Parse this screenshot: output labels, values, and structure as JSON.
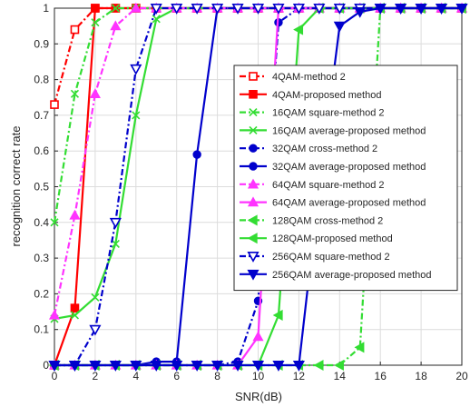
{
  "chart_data": {
    "type": "line",
    "xlabel": "SNR(dB)",
    "ylabel": "recognition correct rate",
    "xlim": [
      0,
      20
    ],
    "ylim": [
      0,
      1
    ],
    "x_ticks": [
      0,
      2,
      4,
      6,
      8,
      10,
      12,
      14,
      16,
      18,
      20
    ],
    "y_ticks": [
      0,
      0.1,
      0.2,
      0.3,
      0.4,
      0.5,
      0.6,
      0.7,
      0.8,
      0.9,
      1
    ],
    "x_tick_labels": [
      "0",
      "2",
      "4",
      "6",
      "8",
      "10",
      "12",
      "14",
      "16",
      "18",
      "20"
    ],
    "y_tick_labels": [
      "0",
      "0.1",
      "0.2",
      "0.3",
      "0.4",
      "0.5",
      "0.6",
      "0.7",
      "0.8",
      "0.9",
      "1"
    ],
    "grid": true,
    "legend_position": "center-right",
    "series": [
      {
        "name": "4QAM-method 2",
        "color": "#ff0000",
        "dash": "dashdot",
        "marker": "square-open",
        "x": [
          0,
          1,
          2,
          3,
          4,
          5,
          6,
          7,
          8,
          9,
          10,
          11,
          12,
          13,
          14,
          15,
          16,
          17,
          18,
          19,
          20
        ],
        "y": [
          0.73,
          0.94,
          1,
          1,
          1,
          1,
          1,
          1,
          1,
          1,
          1,
          1,
          1,
          1,
          1,
          1,
          1,
          1,
          1,
          1,
          1
        ]
      },
      {
        "name": "4QAM-proposed method",
        "color": "#ff0000",
        "dash": "solid",
        "marker": "square-filled",
        "x": [
          0,
          1,
          2,
          3,
          4,
          5,
          6,
          7,
          8,
          9,
          10,
          11,
          12,
          13,
          14,
          15,
          16,
          17,
          18,
          19,
          20
        ],
        "y": [
          0,
          0.16,
          1,
          1,
          1,
          1,
          1,
          1,
          1,
          1,
          1,
          1,
          1,
          1,
          1,
          1,
          1,
          1,
          1,
          1,
          1
        ]
      },
      {
        "name": "16QAM square-method 2",
        "color": "#33dd33",
        "dash": "dashdot",
        "marker": "x",
        "x": [
          0,
          1,
          2,
          3,
          4,
          5,
          6,
          7,
          8,
          9,
          10,
          11,
          12,
          13,
          14,
          15,
          16,
          17,
          18,
          19,
          20
        ],
        "y": [
          0.4,
          0.76,
          0.96,
          1,
          1,
          1,
          1,
          1,
          1,
          1,
          1,
          1,
          1,
          1,
          1,
          1,
          1,
          1,
          1,
          1,
          1
        ]
      },
      {
        "name": "16QAM average-proposed method",
        "color": "#33dd33",
        "dash": "solid",
        "marker": "x",
        "x": [
          0,
          1,
          2,
          3,
          4,
          5,
          6,
          7,
          8,
          9,
          10,
          11,
          12,
          13,
          14,
          15,
          16,
          17,
          18,
          19,
          20
        ],
        "y": [
          0.13,
          0.14,
          0.19,
          0.34,
          0.7,
          0.97,
          1,
          1,
          1,
          1,
          1,
          1,
          1,
          1,
          1,
          1,
          1,
          1,
          1,
          1,
          1
        ]
      },
      {
        "name": "32QAM cross-method 2",
        "color": "#0000cc",
        "dash": "dashdot",
        "marker": "circle-filled",
        "x": [
          0,
          1,
          2,
          3,
          4,
          5,
          6,
          7,
          8,
          9,
          10,
          11,
          12,
          13,
          14,
          15,
          16,
          17,
          18,
          19,
          20
        ],
        "y": [
          0,
          0,
          0,
          0,
          0,
          0,
          0,
          0,
          0,
          0.01,
          0.18,
          0.96,
          1,
          1,
          1,
          1,
          1,
          1,
          1,
          1,
          1
        ]
      },
      {
        "name": "32QAM average-proposed method",
        "color": "#0000cc",
        "dash": "solid",
        "marker": "circle-filled",
        "x": [
          0,
          1,
          2,
          3,
          4,
          5,
          6,
          7,
          8,
          9,
          10,
          11,
          12,
          13,
          14,
          15,
          16,
          17,
          18,
          19,
          20
        ],
        "y": [
          0,
          0,
          0,
          0,
          0,
          0.01,
          0.01,
          0.59,
          1,
          1,
          1,
          1,
          1,
          1,
          1,
          1,
          1,
          1,
          1,
          1,
          1
        ]
      },
      {
        "name": "64QAM square-method 2",
        "color": "#ff33ff",
        "dash": "dashdot",
        "marker": "triangle-up",
        "x": [
          0,
          1,
          2,
          3,
          4,
          5,
          6,
          7,
          8,
          9,
          10,
          11,
          12,
          13,
          14,
          15,
          16,
          17,
          18,
          19,
          20
        ],
        "y": [
          0.14,
          0.42,
          0.76,
          0.95,
          1,
          1,
          1,
          1,
          1,
          1,
          1,
          1,
          1,
          1,
          1,
          1,
          1,
          1,
          1,
          1,
          1
        ]
      },
      {
        "name": "64QAM average-proposed method",
        "color": "#ff33ff",
        "dash": "solid",
        "marker": "triangle-up",
        "x": [
          0,
          1,
          2,
          3,
          4,
          5,
          6,
          7,
          8,
          9,
          10,
          11,
          12,
          13,
          14,
          15,
          16,
          17,
          18,
          19,
          20
        ],
        "y": [
          0,
          0,
          0,
          0,
          0,
          0,
          0,
          0,
          0,
          0,
          0.08,
          1,
          1,
          1,
          1,
          1,
          1,
          1,
          1,
          1,
          1
        ]
      },
      {
        "name": "128QAM cross-method 2",
        "color": "#33dd33",
        "dash": "dashdot",
        "marker": "triangle-left",
        "x": [
          0,
          1,
          2,
          3,
          4,
          5,
          6,
          7,
          8,
          9,
          10,
          11,
          12,
          13,
          14,
          15,
          16,
          17,
          18,
          19,
          20
        ],
        "y": [
          0,
          0,
          0,
          0,
          0,
          0,
          0,
          0,
          0,
          0,
          0,
          0,
          0,
          0,
          0,
          0.05,
          1,
          1,
          1,
          1,
          1
        ]
      },
      {
        "name": "128QAM-proposed method",
        "color": "#33dd33",
        "dash": "solid",
        "marker": "triangle-left",
        "x": [
          0,
          1,
          2,
          3,
          4,
          5,
          6,
          7,
          8,
          9,
          10,
          11,
          12,
          13,
          14,
          15,
          16,
          17,
          18,
          19,
          20
        ],
        "y": [
          0,
          0,
          0,
          0,
          0,
          0,
          0,
          0,
          0,
          0,
          0,
          0.14,
          0.94,
          1,
          1,
          1,
          1,
          1,
          1,
          1,
          1
        ]
      },
      {
        "name": "256QAM square-method 2",
        "color": "#0000cc",
        "dash": "dashdot",
        "marker": "triangle-down-open",
        "x": [
          0,
          1,
          2,
          3,
          4,
          5,
          6,
          7,
          8,
          9,
          10,
          11,
          12,
          13,
          14,
          15,
          16,
          17,
          18,
          19,
          20
        ],
        "y": [
          0,
          0,
          0.1,
          0.4,
          0.83,
          1,
          1,
          1,
          1,
          1,
          1,
          1,
          1,
          1,
          1,
          1,
          1,
          1,
          1,
          1,
          1
        ]
      },
      {
        "name": "256QAM average-proposed method",
        "color": "#0000cc",
        "dash": "solid",
        "marker": "triangle-down-filled",
        "x": [
          0,
          1,
          2,
          3,
          4,
          5,
          6,
          7,
          8,
          9,
          10,
          11,
          12,
          13,
          14,
          15,
          16,
          17,
          18,
          19,
          20
        ],
        "y": [
          0,
          0,
          0,
          0,
          0,
          0,
          0,
          0,
          0,
          0,
          0,
          0,
          0,
          0.5,
          0.95,
          0.99,
          1,
          1,
          1,
          1,
          1
        ]
      }
    ]
  }
}
